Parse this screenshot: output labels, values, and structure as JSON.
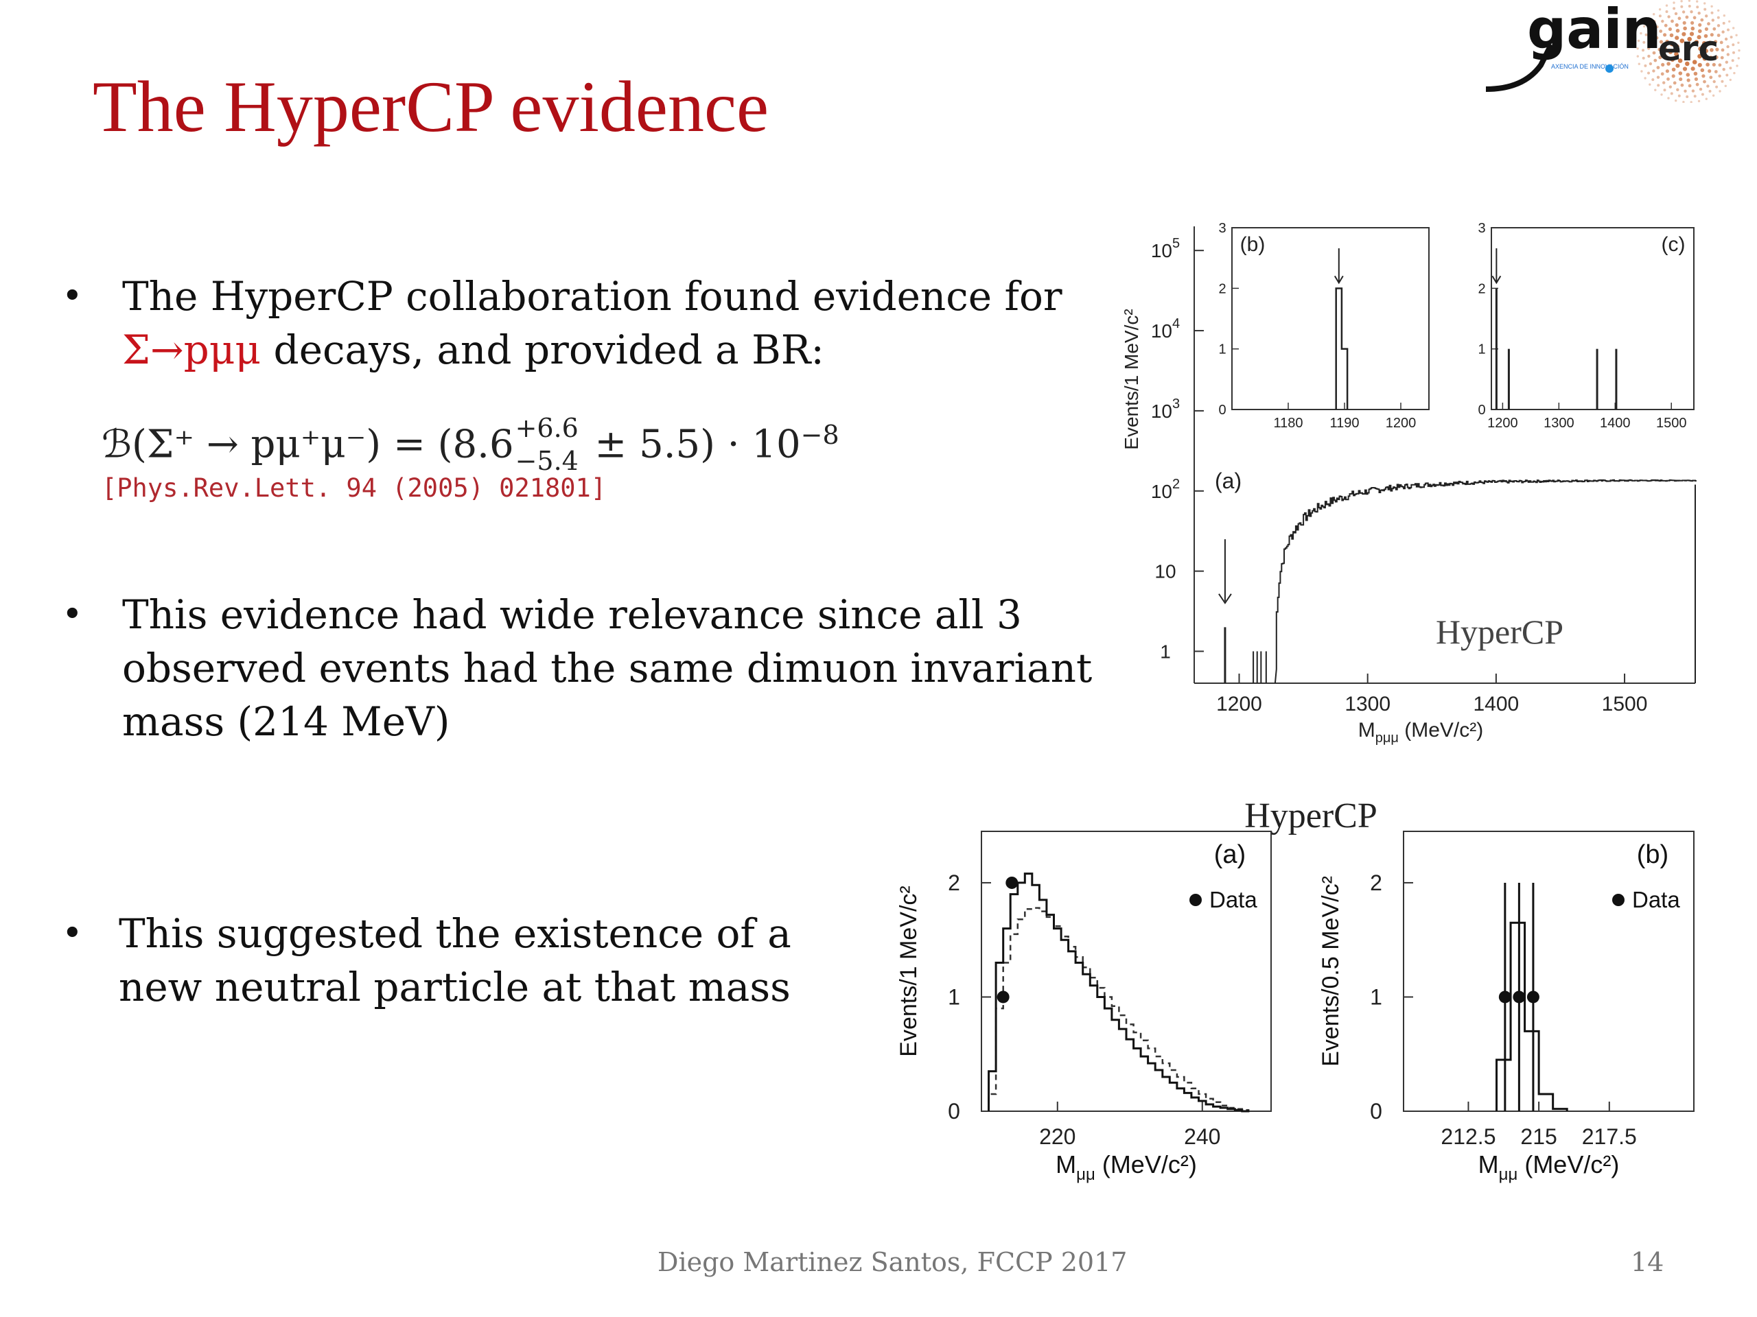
{
  "slide": {
    "title": "The HyperCP evidence",
    "logo": {
      "text_main": "gain",
      "text_small": "AXENCIA DE INNOVACIÓN",
      "text_erc": "erc"
    },
    "bullets": [
      {
        "text_a": "The HyperCP collaboration found evidence for",
        "text_b_red": "Σ→pμμ",
        "text_b": " decays, and provided a BR:"
      },
      {
        "lines": [
          "This evidence had wide relevance since all 3",
          "observed events had the same dimuon invariant",
          "mass (214 MeV)"
        ]
      },
      {
        "lines": [
          "This suggested the existence of a",
          "new neutral particle at that mass"
        ]
      }
    ],
    "formula": {
      "lhs": "ℬ(Σ⁺ → pμ⁺μ⁻) = (8.6",
      "sup": "+6.6",
      "sub": "−5.4",
      "rhs": " ± 5.5) · 10",
      "exp": "−8"
    },
    "citation": "[Phys.Rev.Lett. 94 (2005) 021801]",
    "footer": {
      "author": "Diego Martinez Santos, FCCP 2017",
      "page": "14"
    }
  },
  "chart_data": [
    {
      "type": "histogram",
      "panel": "top",
      "label": "(a)",
      "watermark": "HyperCP",
      "xlabel": "M",
      "xlabel_sub": "pμμ",
      "xlabel_unit": " (MeV/c²)",
      "ylabel": "Events/1 MeV/c²",
      "xlim": [
        1165,
        1555
      ],
      "yscale": "log",
      "ylim": [
        0.4,
        200000
      ],
      "xticks": [
        "1200",
        "1300",
        "1400",
        "1500"
      ],
      "yticks": [
        {
          "value": 1,
          "base": "1",
          "exp": ""
        },
        {
          "value": 10,
          "base": "10",
          "exp": ""
        },
        {
          "value": 100,
          "base": "10",
          "exp": "2"
        },
        {
          "value": 1000,
          "base": "10",
          "exp": "3"
        },
        {
          "value": 10000,
          "base": "10",
          "exp": "4"
        },
        {
          "value": 100000,
          "base": "10",
          "exp": "5"
        }
      ],
      "signal_events": [
        {
          "x": 1189,
          "y": 2
        }
      ],
      "background_spikes": [
        1211,
        1214,
        1217,
        1221
      ],
      "background_curve": {
        "x_start": 1228,
        "x_end": 1555,
        "plateau": 135,
        "rise_width": 55
      },
      "arrow_x": 1189
    },
    {
      "type": "histogram",
      "panel": "inset",
      "label": "(b)",
      "xlim": [
        1170,
        1205
      ],
      "ylim": [
        0,
        3
      ],
      "xticks": [
        "1180",
        "1190",
        "1200"
      ],
      "yticks": [
        "0",
        "1",
        "2",
        "3"
      ],
      "bins": [
        {
          "x0": 1188.5,
          "x1": 1189.5,
          "y": 2
        },
        {
          "x0": 1189.5,
          "x1": 1190.5,
          "y": 1
        }
      ],
      "arrow_x": 1189
    },
    {
      "type": "histogram",
      "panel": "inset",
      "label": "(c)",
      "xlim": [
        1180,
        1540
      ],
      "ylim": [
        0,
        3
      ],
      "xticks": [
        "1200",
        "1300",
        "1400",
        "1500"
      ],
      "yticks": [
        "0",
        "1",
        "2",
        "3"
      ],
      "spikes": [
        {
          "x": 1189,
          "y": 2
        },
        {
          "x": 1211,
          "y": 1
        },
        {
          "x": 1368,
          "y": 1
        },
        {
          "x": 1402,
          "y": 1
        }
      ],
      "arrow_x": 1189
    },
    {
      "type": "histogram",
      "panel": "bottom",
      "label": "(a)",
      "header": "HyperCP",
      "legend": "Data",
      "legend_position": "top-right",
      "xlabel": "M",
      "xlabel_sub": "μμ",
      "xlabel_unit": " (MeV/c²)",
      "ylabel": "Events/1 MeV/c²",
      "xlim": [
        209.5,
        249.5
      ],
      "ylim": [
        0,
        2.45
      ],
      "xticks": [
        "220",
        "240"
      ],
      "yticks": [
        "0",
        "1",
        "2"
      ],
      "solid": [
        0.35,
        1.3,
        1.6,
        1.9,
        2.0,
        2.08,
        1.98,
        1.85,
        1.72,
        1.6,
        1.5,
        1.4,
        1.3,
        1.2,
        1.1,
        1.0,
        0.9,
        0.8,
        0.72,
        0.63,
        0.55,
        0.48,
        0.42,
        0.36,
        0.3,
        0.25,
        0.2,
        0.16,
        0.12,
        0.09,
        0.06,
        0.04,
        0.03,
        0.02,
        0.01,
        0.0
      ],
      "dashed": [
        0.15,
        0.9,
        1.3,
        1.55,
        1.68,
        1.77,
        1.78,
        1.75,
        1.7,
        1.62,
        1.53,
        1.44,
        1.35,
        1.26,
        1.17,
        1.08,
        1.0,
        0.92,
        0.84,
        0.76,
        0.69,
        0.62,
        0.55,
        0.48,
        0.42,
        0.36,
        0.3,
        0.25,
        0.2,
        0.15,
        0.11,
        0.08,
        0.05,
        0.03,
        0.02,
        0.01
      ],
      "hist_x_start": 210.5,
      "data_points": [
        {
          "x": 212.5,
          "y": 1
        },
        {
          "x": 213.7,
          "y": 2
        }
      ]
    },
    {
      "type": "histogram",
      "panel": "bottom",
      "label": "(b)",
      "legend": "Data",
      "legend_position": "top-right",
      "xlabel": "M",
      "xlabel_sub": "μμ",
      "xlabel_unit": " (MeV/c²)",
      "ylabel": "Events/0.5 MeV/c²",
      "xlim": [
        210.2,
        220.5
      ],
      "ylim": [
        0,
        2.45
      ],
      "xticks": [
        "212.5",
        "215",
        "217.5"
      ],
      "yticks": [
        "0",
        "1",
        "2"
      ],
      "bins": [
        {
          "x0": 213.5,
          "x1": 214.0,
          "y": 0.45
        },
        {
          "x0": 214.0,
          "x1": 214.5,
          "y": 1.65
        },
        {
          "x0": 214.5,
          "x1": 215.0,
          "y": 0.7
        },
        {
          "x0": 215.0,
          "x1": 215.5,
          "y": 0.15
        },
        {
          "x0": 215.5,
          "x1": 216.0,
          "y": 0.02
        }
      ],
      "data_points": [
        {
          "x": 213.8,
          "y": 1
        },
        {
          "x": 214.3,
          "y": 1
        },
        {
          "x": 214.8,
          "y": 1
        }
      ]
    }
  ]
}
